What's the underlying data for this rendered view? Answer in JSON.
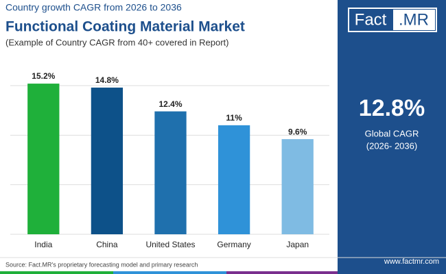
{
  "chart_data": {
    "type": "bar",
    "supertitle": "Country growth CAGR from 2026 to 2036",
    "title": "Functional Coating Material Market",
    "subtitle": "(Example of Country CAGR from 40+ covered in Report)",
    "categories": [
      "India",
      "China",
      "United States",
      "Germany",
      "Japan"
    ],
    "values": [
      15.2,
      14.8,
      12.4,
      11,
      9.6
    ],
    "value_labels": [
      "15.2%",
      "14.8%",
      "12.4%",
      "11%",
      "9.6%"
    ],
    "colors": [
      "#1fb03a",
      "#0d5189",
      "#1f70ad",
      "#2f92d8",
      "#7fbbe3"
    ],
    "ylim": [
      0,
      16
    ],
    "yticks": [
      0,
      5,
      10,
      15
    ],
    "grid": true
  },
  "panel": {
    "logo_left": "Fact",
    "logo_right": ".MR",
    "value": "12.8%",
    "label": "Global CAGR",
    "period": "(2026- 2036)"
  },
  "footer": {
    "source": "Source: Fact.MR's proprietary forecasting model and primary research",
    "website": "www.factmr.com"
  }
}
